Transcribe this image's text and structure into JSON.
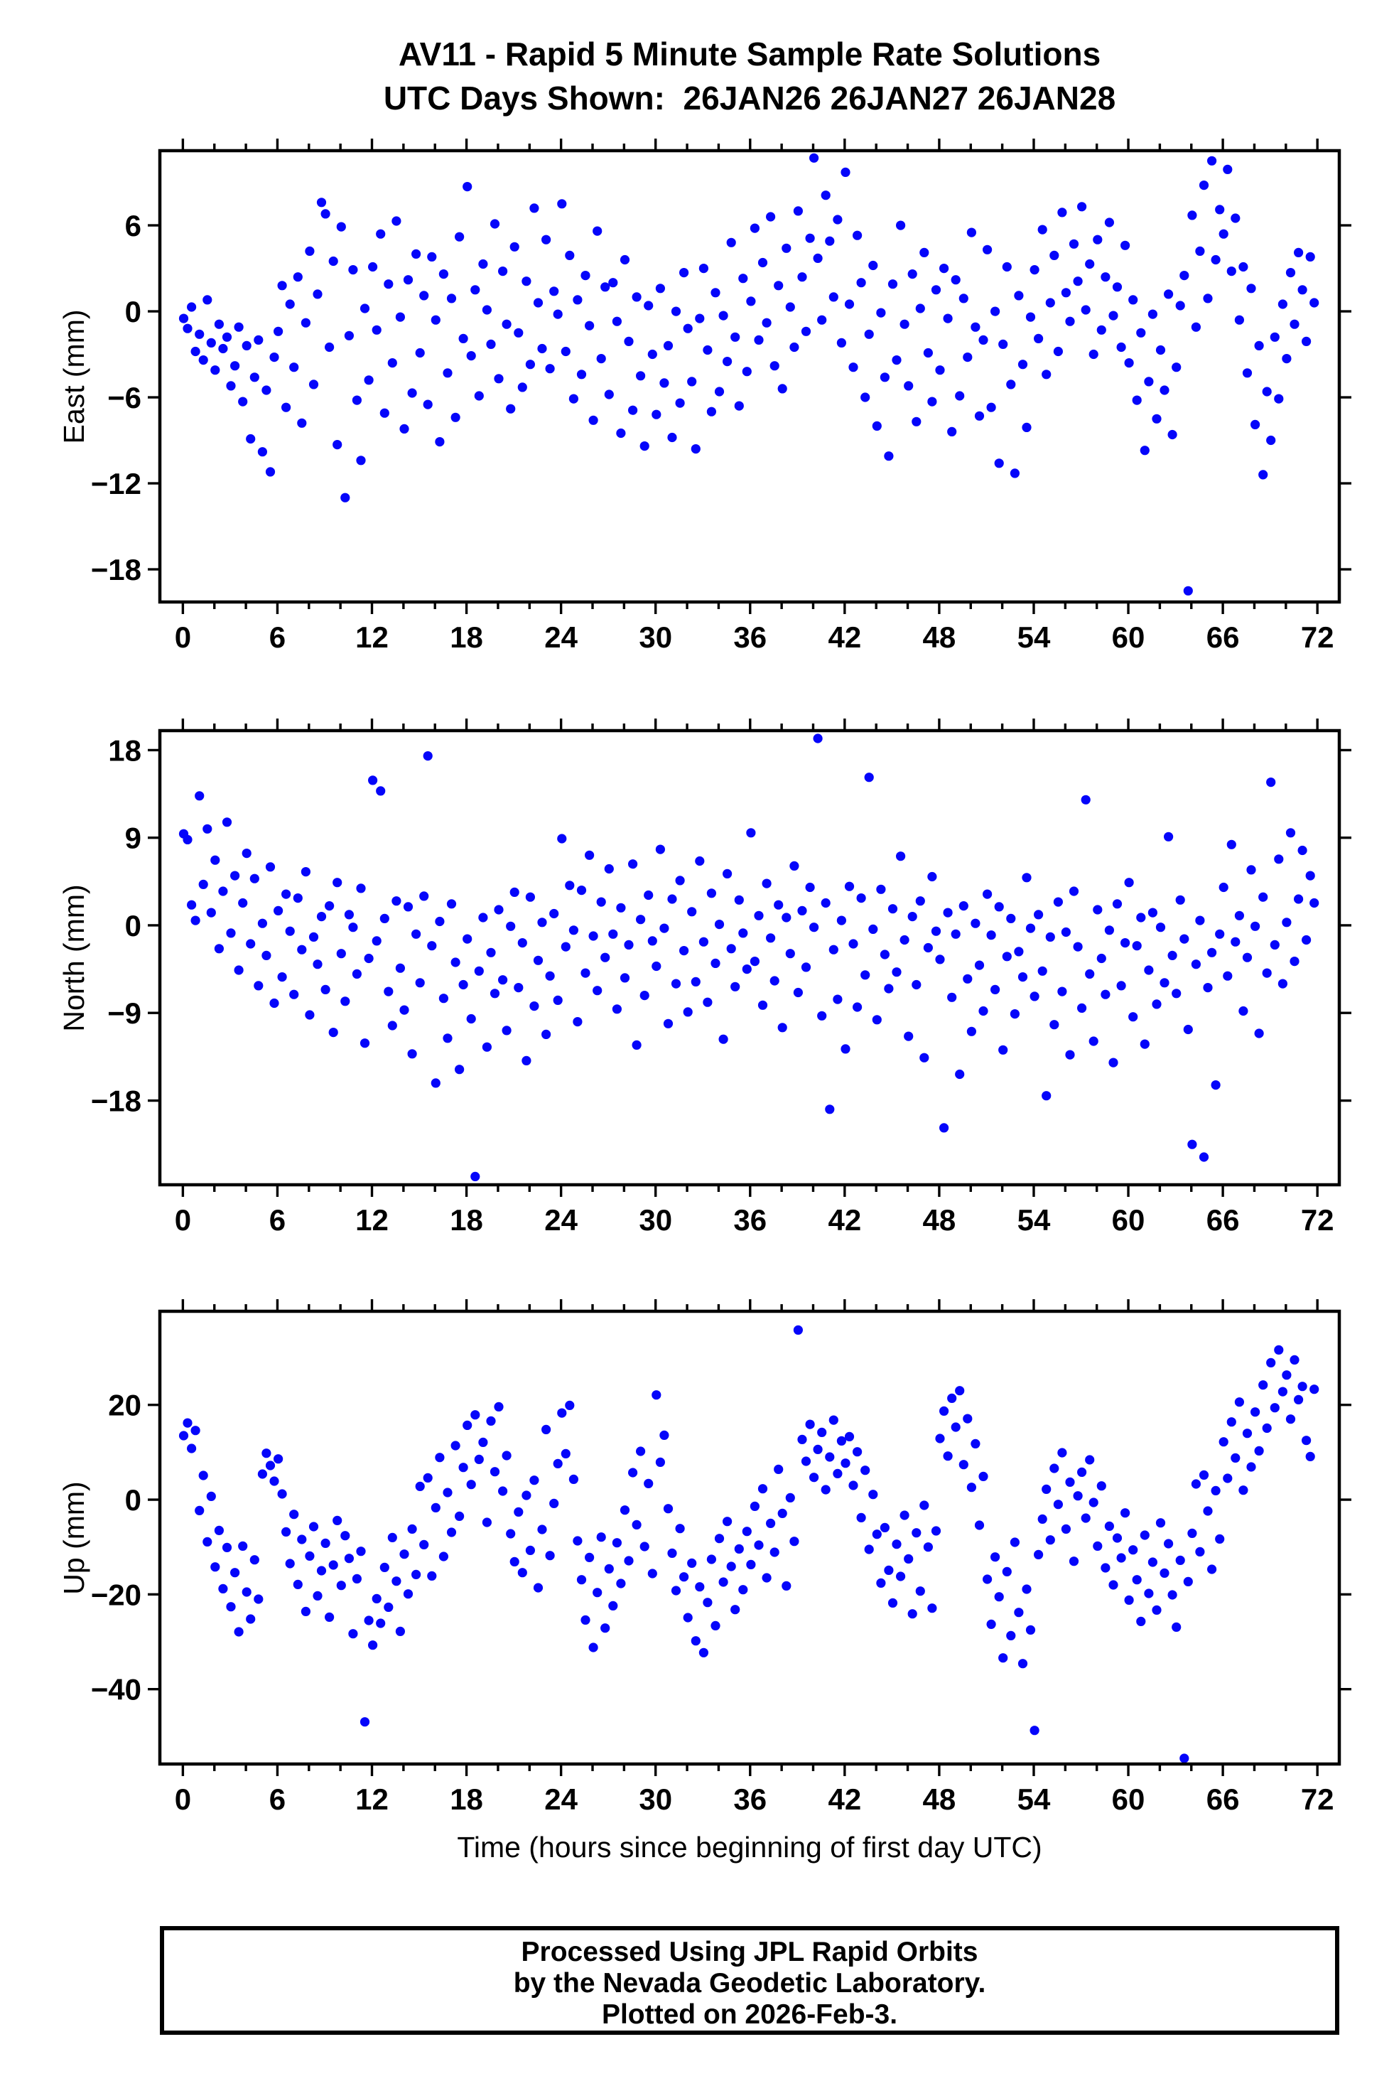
{
  "title": {
    "line1": "AV11 - Rapid 5 Minute Sample Rate Solutions",
    "line2": "UTC Days Shown:  26JAN26 26JAN27 26JAN28"
  },
  "style": {
    "marker_color": "#0505fa",
    "marker_radius": 6.6,
    "axis_color": "#000000"
  },
  "chart_data": [
    {
      "type": "scatter",
      "series": "East",
      "ylabel": "East (mm)",
      "xlim": [
        -1.46,
        73.39
      ],
      "ylim": [
        -20.28,
        11.21
      ],
      "x_major_ticks": [
        0,
        6,
        12,
        18,
        24,
        30,
        36,
        42,
        48,
        54,
        60,
        66,
        72
      ],
      "x_minor_step": 2,
      "y_tick_values": [
        6,
        0,
        -6,
        -12,
        -18
      ],
      "y_tick_labels": [
        "6",
        "0",
        "−6",
        "−12",
        "−18"
      ],
      "points": {
        "x_start": 0.05,
        "x_step": 0.25,
        "y": [
          -0.5,
          -1.2,
          0.3,
          -2.8,
          -1.6,
          -3.4,
          0.8,
          -2.2,
          -4.1,
          -0.9,
          -2.6,
          -1.8,
          -5.2,
          -3.8,
          -1.1,
          -6.3,
          -2.4,
          -8.9,
          -4.6,
          -2.0,
          -9.8,
          -5.5,
          -11.2,
          -3.2,
          -1.4,
          1.8,
          -6.7,
          0.5,
          -3.9,
          2.4,
          -7.8,
          -0.8,
          4.2,
          -5.1,
          1.2,
          7.6,
          6.8,
          -2.5,
          3.5,
          -9.3,
          5.9,
          -13.0,
          -1.7,
          2.9,
          -6.2,
          -10.4,
          0.2,
          -4.8,
          3.1,
          -1.3,
          5.4,
          -7.1,
          1.9,
          -3.6,
          6.3,
          -0.4,
          -8.2,
          2.2,
          -5.7,
          4.0,
          -2.9,
          1.1,
          -6.5,
          3.8,
          -0.6,
          -9.1,
          2.6,
          -4.3,
          0.9,
          -7.4,
          5.2,
          -1.9,
          8.7,
          -3.1,
          1.5,
          -5.9,
          3.3,
          0.1,
          -2.3,
          6.1,
          -4.7,
          2.8,
          -0.9,
          -6.8,
          4.5,
          -1.5,
          -5.3,
          2.1,
          -3.7,
          7.2,
          0.6,
          -2.6,
          5.0,
          -4.0,
          1.4,
          -0.2,
          7.5,
          -2.8,
          3.9,
          -6.1,
          0.8,
          -4.4,
          2.5,
          -1.0,
          -7.6,
          5.6,
          -3.3,
          1.7,
          -5.8,
          2.0,
          -0.7,
          -8.5,
          3.6,
          -2.1,
          -6.9,
          1.0,
          -4.5,
          -9.4,
          0.4,
          -3.0,
          -7.2,
          1.6,
          -5.0,
          -2.4,
          -8.8,
          0.0,
          -6.4,
          2.7,
          -1.2,
          -4.9,
          -9.6,
          -0.5,
          3.0,
          -2.7,
          -7.0,
          1.3,
          -5.6,
          -0.3,
          -3.5,
          4.8,
          -1.8,
          -6.6,
          2.3,
          -4.2,
          0.7,
          5.8,
          -2.0,
          3.4,
          -0.8,
          6.6,
          -3.8,
          1.8,
          -5.4,
          4.4,
          0.3,
          -2.5,
          7.0,
          2.4,
          -1.4,
          5.1,
          10.7,
          3.7,
          -0.6,
          8.1,
          4.9,
          1.0,
          6.4,
          -2.2,
          9.7,
          0.5,
          -3.9,
          5.3,
          2.0,
          -6.0,
          -1.6,
          3.2,
          -8.0,
          -0.1,
          -4.6,
          -10.1,
          1.9,
          -3.4,
          6.0,
          -0.9,
          -5.2,
          2.6,
          -7.7,
          0.2,
          4.1,
          -2.9,
          -6.3,
          1.5,
          -4.1,
          3.0,
          -0.5,
          -8.4,
          2.2,
          -5.9,
          0.9,
          -3.2,
          5.5,
          -1.1,
          -7.3,
          -2.0,
          4.3,
          -6.7,
          0.0,
          -10.6,
          -2.3,
          3.1,
          -5.1,
          -11.3,
          1.1,
          -3.7,
          -8.1,
          -0.4,
          2.9,
          -1.9,
          5.7,
          -4.4,
          0.6,
          3.9,
          -2.8,
          6.9,
          1.3,
          -0.7,
          4.7,
          2.1,
          7.3,
          0.1,
          3.3,
          -3.0,
          5.0,
          -1.3,
          2.4,
          6.2,
          -0.3,
          1.7,
          -2.5,
          4.6,
          -3.6,
          0.8,
          -6.2,
          -1.5,
          -9.7,
          -4.9,
          -0.2,
          -7.5,
          -2.7,
          -5.5,
          1.2,
          -8.6,
          -3.9,
          0.4,
          2.5,
          -19.5,
          6.7,
          -1.1,
          4.2,
          8.8,
          0.9,
          10.5,
          3.6,
          7.1,
          5.4,
          9.9,
          2.8,
          6.5,
          -0.6,
          3.1,
          -4.3,
          1.6,
          -7.9,
          -2.4,
          -11.4,
          -5.6,
          -9.0,
          -1.8,
          -6.1,
          0.5,
          -3.3,
          2.7,
          -0.9,
          4.1,
          1.5,
          -2.1,
          3.8,
          0.6
        ]
      }
    },
    {
      "type": "scatter",
      "series": "North",
      "ylabel": "North (mm)",
      "xlim": [
        -1.46,
        73.39
      ],
      "ylim": [
        -26.65,
        20.0
      ],
      "x_major_ticks": [
        0,
        6,
        12,
        18,
        24,
        30,
        36,
        42,
        48,
        54,
        60,
        66,
        72
      ],
      "x_minor_step": 2,
      "y_tick_values": [
        18,
        9,
        0,
        -9,
        -18
      ],
      "y_tick_labels": [
        "18",
        "9",
        "0",
        "−9",
        "−18"
      ],
      "points": {
        "x_start": 0.05,
        "x_step": 0.25,
        "y": [
          9.4,
          8.8,
          2.1,
          0.5,
          13.3,
          4.2,
          9.9,
          1.3,
          6.7,
          -2.4,
          3.5,
          10.6,
          -0.8,
          5.1,
          -4.6,
          2.3,
          7.4,
          -1.9,
          4.8,
          -6.2,
          0.2,
          -3.1,
          6.0,
          -8.0,
          1.5,
          -5.3,
          3.2,
          -0.6,
          -7.1,
          2.8,
          -2.5,
          5.5,
          -9.2,
          -1.2,
          -4.0,
          0.9,
          -6.6,
          2.0,
          -11.0,
          4.4,
          -2.9,
          -7.8,
          1.1,
          -0.2,
          -5.0,
          3.8,
          -12.1,
          -3.4,
          14.9,
          -1.6,
          13.8,
          0.7,
          -6.8,
          -10.3,
          2.5,
          -4.4,
          -8.7,
          1.9,
          -13.2,
          -0.9,
          -5.9,
          3.0,
          17.4,
          -2.1,
          -16.2,
          0.4,
          -7.5,
          -11.6,
          2.2,
          -3.8,
          -14.8,
          -6.1,
          -1.4,
          -9.6,
          -25.8,
          -4.7,
          0.8,
          -12.5,
          -2.8,
          -7.0,
          1.6,
          -5.6,
          -10.8,
          -0.1,
          3.4,
          -6.4,
          -1.8,
          -13.9,
          2.9,
          -8.3,
          -3.6,
          0.3,
          -11.2,
          -5.2,
          1.2,
          -7.7,
          8.9,
          -2.2,
          4.1,
          -0.5,
          -9.9,
          3.6,
          -4.9,
          7.2,
          -1.1,
          -6.7,
          2.4,
          -3.3,
          5.8,
          -0.9,
          -8.6,
          1.8,
          -5.4,
          -2.0,
          6.3,
          -12.3,
          0.6,
          -7.2,
          3.1,
          -1.6,
          -4.2,
          7.8,
          -0.3,
          -10.1,
          2.7,
          -6.0,
          4.6,
          -2.6,
          -8.9,
          1.4,
          -5.8,
          6.6,
          -1.7,
          -7.9,
          3.3,
          -3.9,
          0.1,
          -11.7,
          5.3,
          -2.4,
          -6.3,
          2.6,
          -0.8,
          -4.5,
          9.5,
          -3.7,
          1.0,
          -8.2,
          4.3,
          -1.3,
          -5.7,
          2.1,
          -10.5,
          0.8,
          -2.9,
          6.1,
          -6.9,
          1.5,
          -4.3,
          3.9,
          -0.2,
          19.2,
          -9.3,
          2.3,
          -18.9,
          -2.5,
          -7.6,
          0.5,
          -12.7,
          4.0,
          -1.9,
          -8.4,
          2.8,
          -5.1,
          15.2,
          -0.4,
          -9.7,
          3.7,
          -3.0,
          -6.5,
          1.7,
          -4.8,
          7.1,
          -1.5,
          -11.4,
          0.9,
          -6.1,
          2.5,
          -13.6,
          -2.3,
          5.0,
          -0.6,
          -3.5,
          -20.8,
          1.3,
          -7.4,
          -0.9,
          -15.3,
          2.0,
          -5.5,
          -10.9,
          0.2,
          -4.1,
          -8.8,
          3.2,
          -1.0,
          -6.6,
          1.9,
          -12.8,
          -3.2,
          0.7,
          -9.1,
          -2.7,
          -5.3,
          4.9,
          -0.3,
          -7.3,
          1.1,
          -4.7,
          -17.5,
          -1.2,
          -10.2,
          2.4,
          -6.8,
          -0.7,
          -13.3,
          3.5,
          -2.2,
          -8.5,
          12.9,
          -5.0,
          -11.9,
          1.6,
          -3.4,
          -7.1,
          -0.5,
          -14.1,
          2.2,
          -6.2,
          -1.8,
          4.4,
          -9.4,
          -2.1,
          0.8,
          -12.2,
          -4.6,
          1.3,
          -8.1,
          -0.2,
          -5.9,
          9.1,
          -3.1,
          -7.0,
          2.6,
          -1.4,
          -10.7,
          -22.5,
          -4.0,
          0.5,
          -23.8,
          -6.4,
          -2.8,
          -16.4,
          -0.9,
          3.9,
          -5.2,
          8.3,
          -1.7,
          1.0,
          -8.8,
          -3.3,
          5.7,
          -0.1,
          -11.1,
          2.9,
          -4.9,
          14.7,
          -2.0,
          6.8,
          -6.0,
          0.3,
          9.5,
          -3.7,
          2.7,
          7.7,
          -1.5,
          5.1,
          2.3
        ]
      }
    },
    {
      "type": "scatter",
      "series": "Up",
      "ylabel": "Up (mm)",
      "xlabel": "Time (hours since beginning of first day UTC)",
      "xlim": [
        -1.46,
        73.39
      ],
      "ylim": [
        -55.8,
        39.76
      ],
      "x_major_ticks": [
        0,
        6,
        12,
        18,
        24,
        30,
        36,
        42,
        48,
        54,
        60,
        66,
        72
      ],
      "x_minor_step": 2,
      "y_tick_values": [
        20,
        0,
        -20,
        -40
      ],
      "y_tick_labels": [
        "20",
        "0",
        "−20",
        "−40"
      ],
      "points": {
        "x_start": 0.05,
        "x_step": 0.25,
        "y": [
          13.5,
          16.2,
          10.8,
          14.6,
          -2.3,
          5.1,
          -8.9,
          0.7,
          -14.2,
          -6.5,
          -18.8,
          -10.1,
          -22.6,
          -15.4,
          -27.9,
          -9.8,
          -19.5,
          -25.2,
          -12.7,
          -21.0,
          5.4,
          9.8,
          7.2,
          3.9,
          8.6,
          1.2,
          -6.8,
          -13.5,
          -3.1,
          -17.9,
          -8.4,
          -23.6,
          -11.9,
          -5.7,
          -20.3,
          -15.0,
          -9.2,
          -24.8,
          -13.8,
          -4.4,
          -18.1,
          -7.6,
          -12.4,
          -28.3,
          -16.7,
          -10.9,
          -46.9,
          -25.5,
          -30.7,
          -20.9,
          -26.1,
          -14.3,
          -22.7,
          -8.0,
          -17.2,
          -27.8,
          -11.5,
          -19.9,
          -6.2,
          -15.8,
          2.8,
          -9.5,
          4.6,
          -16.1,
          -1.7,
          8.9,
          -12.0,
          1.5,
          -6.9,
          11.4,
          -3.5,
          6.8,
          15.7,
          3.2,
          17.9,
          8.5,
          12.1,
          -4.8,
          16.6,
          5.9,
          19.6,
          1.8,
          9.3,
          -7.2,
          -13.1,
          -2.6,
          -15.4,
          0.9,
          -10.7,
          4.1,
          -18.6,
          -6.3,
          14.8,
          -11.8,
          -0.8,
          7.6,
          18.3,
          9.7,
          19.9,
          4.3,
          -8.7,
          -16.9,
          -25.4,
          -12.2,
          -31.2,
          -19.6,
          -7.9,
          -27.1,
          -14.6,
          -22.4,
          -9.1,
          -17.7,
          -2.2,
          -12.9,
          5.7,
          -5.3,
          10.2,
          -9.9,
          3.4,
          -15.6,
          22.1,
          7.9,
          13.6,
          -1.9,
          -11.3,
          -19.2,
          -6.1,
          -16.3,
          -24.9,
          -13.4,
          -29.8,
          -18.4,
          -32.3,
          -21.7,
          -12.6,
          -26.6,
          -8.2,
          -17.4,
          -4.6,
          -14.1,
          -23.2,
          -10.4,
          -19.0,
          -6.7,
          -13.7,
          -1.4,
          -9.6,
          2.3,
          -16.5,
          -5.0,
          -11.1,
          6.4,
          -2.9,
          -18.2,
          0.4,
          -8.8,
          35.8,
          12.7,
          8.1,
          15.9,
          4.7,
          10.6,
          14.2,
          2.1,
          9.0,
          16.8,
          5.5,
          12.4,
          7.7,
          13.3,
          3.0,
          10.1,
          -3.8,
          6.2,
          -10.5,
          1.1,
          -7.3,
          -17.6,
          -5.9,
          -14.9,
          -21.8,
          -9.4,
          -16.2,
          -3.3,
          -12.5,
          -24.1,
          -7.0,
          -19.3,
          -1.2,
          -10.0,
          -22.9,
          -6.6,
          12.9,
          18.7,
          9.2,
          21.4,
          15.3,
          23.0,
          7.4,
          17.1,
          2.6,
          11.8,
          -5.4,
          4.9,
          -16.8,
          -26.3,
          -12.1,
          -20.5,
          -33.4,
          -15.2,
          -28.7,
          -9.0,
          -23.8,
          -34.6,
          -18.9,
          -27.5,
          -48.7,
          -11.6,
          -4.1,
          2.2,
          -8.5,
          6.6,
          -1.0,
          9.9,
          -6.2,
          3.7,
          -13.0,
          0.8,
          5.8,
          -3.9,
          8.4,
          -0.6,
          -9.8,
          2.9,
          -14.4,
          -5.6,
          -18.0,
          -8.1,
          -12.3,
          -2.8,
          -21.2,
          -10.6,
          -16.9,
          -25.7,
          -7.5,
          -19.8,
          -13.2,
          -23.3,
          -4.9,
          -15.5,
          -9.3,
          -20.1,
          -26.9,
          -12.8,
          -54.6,
          -17.3,
          -7.1,
          3.3,
          -11.0,
          5.2,
          -2.4,
          -14.7,
          1.9,
          -8.3,
          12.2,
          4.5,
          16.4,
          8.8,
          20.6,
          2.0,
          14.0,
          6.9,
          18.5,
          10.3,
          24.2,
          15.1,
          28.9,
          19.4,
          31.6,
          22.8,
          26.3,
          17.0,
          29.5,
          21.1,
          23.9,
          12.5,
          9.1,
          23.3
        ]
      }
    }
  ],
  "footer": {
    "line1": "Processed Using JPL Rapid Orbits",
    "line2": "by the Nevada Geodetic Laboratory.",
    "line3": "Plotted on 2026-Feb-3."
  }
}
